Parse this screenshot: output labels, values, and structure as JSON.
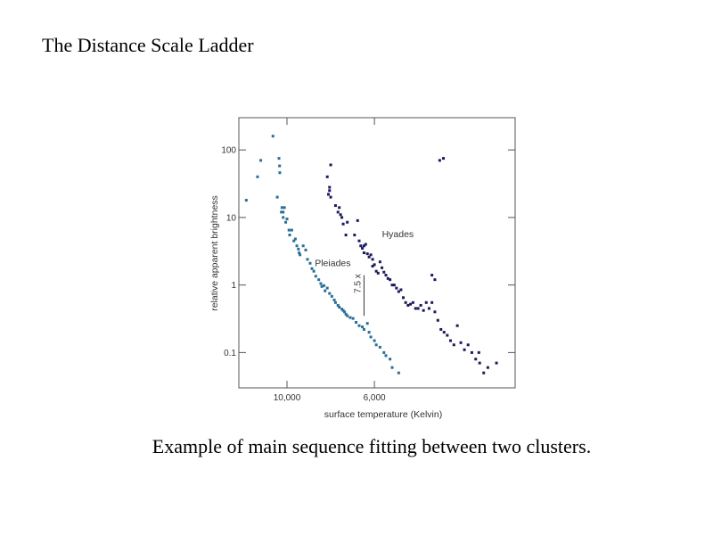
{
  "slide": {
    "title": "The Distance Scale Ladder",
    "caption": "Example of main sequence fitting between two clusters."
  },
  "chart_data": {
    "type": "scatter",
    "xlabel": "surface temperature (Kelvin)",
    "ylabel": "relative apparent brightness",
    "x_scale": "reciprocal",
    "x_ticks": [
      10000,
      6000
    ],
    "x_tick_labels": [
      "10,000",
      "6,000"
    ],
    "xlim": [
      15800,
      3650
    ],
    "y_scale": "log",
    "y_ticks": [
      100,
      10,
      1,
      0.1
    ],
    "y_tick_labels": [
      "100",
      "10",
      "1",
      "0.1"
    ],
    "ylim": [
      0.03,
      300
    ],
    "grid": false,
    "annotations": [
      {
        "text": "Hyades",
        "x": 5800,
        "y": 5.1
      },
      {
        "text": "Pleiades",
        "x": 8250,
        "y": 1.9
      },
      {
        "text": "7.5 x",
        "x": 6300,
        "y": 1.05,
        "from_y": 1.4,
        "to_y": 0.35
      }
    ],
    "series": [
      {
        "name": "Pleiades",
        "color": "#2a6e96",
        "x": [
          14500,
          12900,
          12500,
          11200,
          10800,
          10650,
          10600,
          10580,
          10400,
          10450,
          10300,
          10200,
          10300,
          10100,
          10000,
          9850,
          9800,
          9650,
          9500,
          9400,
          9300,
          9200,
          9150,
          9100,
          8900,
          8750,
          8650,
          8500,
          8400,
          8300,
          8200,
          8050,
          7950,
          7900,
          7800,
          7750,
          7650,
          7550,
          7450,
          7350,
          7300,
          7200,
          7150,
          7050,
          7000,
          6950,
          6900,
          6850,
          6750,
          6650,
          6550,
          6450,
          6350,
          6300,
          6200,
          6150,
          6100,
          6000,
          5950,
          5850,
          5750,
          5700,
          5600,
          5550,
          5400
        ],
        "y": [
          18,
          40,
          70,
          160,
          20,
          75,
          58,
          46,
          14,
          12,
          10,
          14,
          12,
          8.5,
          9.5,
          6.5,
          5.5,
          6.5,
          4.5,
          4.8,
          3.8,
          3.4,
          3.0,
          2.8,
          3.8,
          3.3,
          2.4,
          2.1,
          1.75,
          1.6,
          1.35,
          1.2,
          1.05,
          0.95,
          0.98,
          0.82,
          0.9,
          0.75,
          0.68,
          0.6,
          0.55,
          0.5,
          0.47,
          0.44,
          0.42,
          0.4,
          0.37,
          0.35,
          0.33,
          0.32,
          0.28,
          0.25,
          0.24,
          0.22,
          0.27,
          0.2,
          0.17,
          0.15,
          0.13,
          0.12,
          0.1,
          0.09,
          0.08,
          0.06,
          0.05
        ],
        "point_size": 3
      },
      {
        "name": "Hyades",
        "color": "#1c1a5c",
        "x": [
          7650,
          7600,
          7550,
          7500,
          7550,
          7500,
          7300,
          7200,
          7150,
          7100,
          7050,
          7000,
          6900,
          6850,
          6600,
          6500,
          6450,
          6400,
          6350,
          6300,
          6300,
          6250,
          6200,
          6150,
          6100,
          6050,
          6050,
          6000,
          5950,
          5900,
          5850,
          5800,
          5750,
          5700,
          5650,
          5600,
          5550,
          5500,
          5450,
          5400,
          5350,
          5300,
          5250,
          5200,
          5150,
          5100,
          5050,
          5000,
          4950,
          4900,
          4850,
          4800,
          4750,
          4700,
          4650,
          4600,
          4550,
          4500,
          4450,
          4400,
          4350,
          4300,
          4250,
          4200,
          4150,
          4100,
          4050,
          3950,
          4750,
          4700
        ],
        "y": [
          40,
          22,
          25,
          20,
          28,
          60,
          15,
          12,
          14,
          11,
          10,
          8,
          5.5,
          8.5,
          5.5,
          9.0,
          4.5,
          3.8,
          3.5,
          3.8,
          3.0,
          4.0,
          2.9,
          2.6,
          2.8,
          2.4,
          1.9,
          2.0,
          1.6,
          1.5,
          2.2,
          1.8,
          1.55,
          1.4,
          1.25,
          1.2,
          1.0,
          1.0,
          0.9,
          0.8,
          0.85,
          0.65,
          0.55,
          0.5,
          0.52,
          0.55,
          0.45,
          0.45,
          0.5,
          0.42,
          0.55,
          0.45,
          0.55,
          0.4,
          0.3,
          0.22,
          0.2,
          0.18,
          0.15,
          0.13,
          0.25,
          0.14,
          0.11,
          0.13,
          0.1,
          0.08,
          0.07,
          0.06,
          1.4,
          1.2
        ],
        "point_size": 3
      },
      {
        "name": "",
        "color": "#1c1a5c",
        "x": [
          4620,
          4560,
          4060,
          4000,
          3850
        ],
        "y": [
          70,
          75,
          0.1,
          0.05,
          0.07
        ],
        "point_size": 3
      }
    ]
  }
}
